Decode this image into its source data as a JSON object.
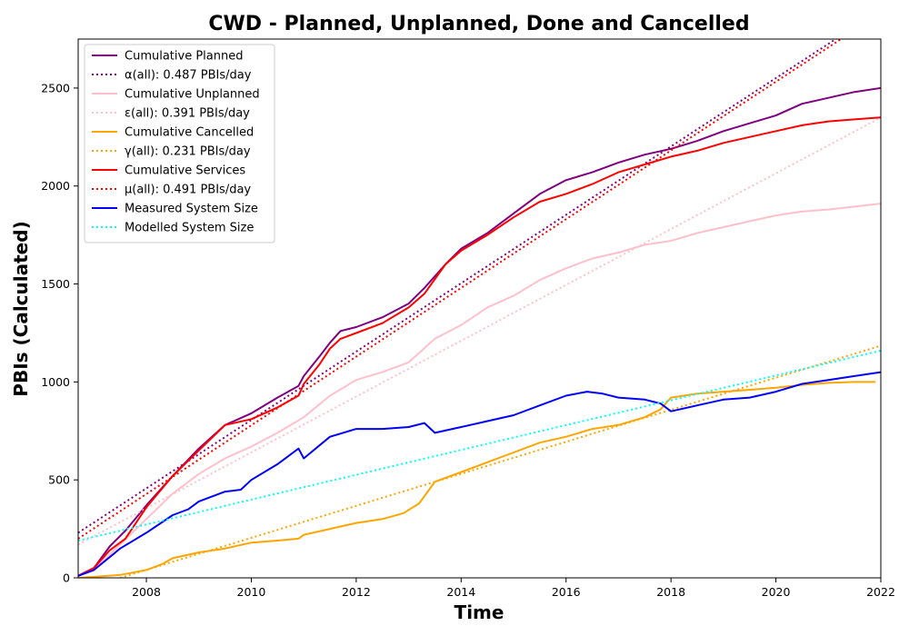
{
  "chart_data": {
    "type": "line",
    "title": "CWD - Planned, Unplanned, Done  and Cancelled",
    "xlabel": "Time",
    "ylabel": "PBIs (Calculated)",
    "xlim": [
      2006.7,
      2022.0
    ],
    "ylim": [
      0,
      2750
    ],
    "xticks": [
      2008,
      2010,
      2012,
      2014,
      2016,
      2018,
      2020,
      2022
    ],
    "xtick_labels": [
      "2008",
      "2010",
      "2012",
      "2014",
      "2016",
      "2018",
      "2020",
      "2022"
    ],
    "yticks": [
      0,
      500,
      1000,
      1500,
      2000,
      2500
    ],
    "ytick_labels": [
      "0",
      "500",
      "1000",
      "1500",
      "2000",
      "2500"
    ],
    "grid": false,
    "legend_position": "top-left",
    "series": [
      {
        "name": "Cumulative Planned",
        "color": "#800080",
        "dash": "solid",
        "x": [
          2006.7,
          2007.0,
          2007.3,
          2007.6,
          2008.0,
          2008.5,
          2009.0,
          2009.5,
          2010.0,
          2010.5,
          2010.9,
          2011.0,
          2011.3,
          2011.5,
          2011.7,
          2012.0,
          2012.5,
          2013.0,
          2013.3,
          2013.7,
          2014.0,
          2014.5,
          2015.0,
          2015.5,
          2016.0,
          2016.5,
          2017.0,
          2017.5,
          2018.0,
          2018.5,
          2019.0,
          2019.5,
          2020.0,
          2020.5,
          2021.0,
          2021.5,
          2022.0
        ],
        "y": [
          10,
          50,
          160,
          240,
          370,
          520,
          660,
          780,
          840,
          920,
          980,
          1030,
          1130,
          1200,
          1260,
          1280,
          1330,
          1400,
          1480,
          1600,
          1680,
          1760,
          1860,
          1960,
          2030,
          2070,
          2120,
          2160,
          2190,
          2230,
          2280,
          2320,
          2360,
          2420,
          2450,
          2480,
          2500
        ]
      },
      {
        "name": "α(all): 0.487 PBIs/day",
        "color": "#800080",
        "dash": "dotted",
        "x": [
          2006.7,
          2021.2
        ],
        "y": [
          230,
          2760
        ]
      },
      {
        "name": "Cumulative Unplanned",
        "color": "#FFC0CB",
        "dash": "solid",
        "x": [
          2006.7,
          2007.0,
          2007.5,
          2008.0,
          2008.5,
          2009.0,
          2009.5,
          2010.0,
          2010.5,
          2011.0,
          2011.5,
          2012.0,
          2012.5,
          2013.0,
          2013.5,
          2014.0,
          2014.5,
          2015.0,
          2015.5,
          2016.0,
          2016.5,
          2017.0,
          2017.5,
          2018.0,
          2018.5,
          2019.0,
          2019.5,
          2020.0,
          2020.5,
          2021.0,
          2021.5,
          2022.0
        ],
        "y": [
          10,
          40,
          170,
          300,
          430,
          530,
          610,
          670,
          740,
          820,
          930,
          1010,
          1050,
          1100,
          1220,
          1290,
          1380,
          1440,
          1520,
          1580,
          1630,
          1660,
          1700,
          1720,
          1760,
          1790,
          1820,
          1850,
          1870,
          1880,
          1895,
          1910
        ]
      },
      {
        "name": "ε(all): 0.391 PBIs/day",
        "color": "#FFC0CB",
        "dash": "dotted",
        "x": [
          2006.7,
          2022.0
        ],
        "y": [
          170,
          2350
        ]
      },
      {
        "name": "Cumulative Cancelled",
        "color": "#FFA500",
        "dash": "solid",
        "x": [
          2006.7,
          2007.0,
          2007.5,
          2008.0,
          2008.3,
          2008.5,
          2009.0,
          2009.5,
          2010.0,
          2010.5,
          2010.9,
          2011.0,
          2011.5,
          2012.0,
          2012.5,
          2012.9,
          2013.2,
          2013.5,
          2014.0,
          2014.5,
          2015.0,
          2015.5,
          2016.0,
          2016.5,
          2017.0,
          2017.5,
          2017.8,
          2018.0,
          2018.5,
          2019.0,
          2019.5,
          2020.0,
          2020.5,
          2021.0,
          2021.5,
          2021.9
        ],
        "y": [
          0,
          5,
          15,
          40,
          70,
          100,
          130,
          150,
          180,
          190,
          200,
          220,
          250,
          280,
          300,
          330,
          380,
          490,
          540,
          590,
          640,
          690,
          720,
          760,
          780,
          820,
          860,
          920,
          940,
          950,
          960,
          970,
          985,
          995,
          1000,
          1000
        ]
      },
      {
        "name": "γ(all): 0.231 PBIs/day",
        "color": "#FFA500",
        "dash": "dotted",
        "x": [
          2007.5,
          2022.0
        ],
        "y": [
          0,
          1185
        ]
      },
      {
        "name": "Cumulative Services",
        "color": "#FF0000",
        "dash": "solid",
        "x": [
          2006.7,
          2007.0,
          2007.3,
          2007.6,
          2008.0,
          2008.5,
          2009.0,
          2009.5,
          2010.0,
          2010.5,
          2010.9,
          2011.0,
          2011.3,
          2011.5,
          2011.7,
          2012.0,
          2012.5,
          2013.0,
          2013.3,
          2013.7,
          2014.0,
          2014.5,
          2015.0,
          2015.5,
          2016.0,
          2016.5,
          2017.0,
          2017.5,
          2018.0,
          2018.5,
          2019.0,
          2019.5,
          2020.0,
          2020.5,
          2021.0,
          2021.5,
          2022.0
        ],
        "y": [
          10,
          50,
          140,
          200,
          360,
          520,
          650,
          780,
          810,
          870,
          930,
          990,
          1090,
          1170,
          1220,
          1250,
          1300,
          1380,
          1450,
          1600,
          1670,
          1750,
          1840,
          1920,
          1960,
          2010,
          2070,
          2110,
          2150,
          2180,
          2220,
          2250,
          2280,
          2310,
          2330,
          2340,
          2350
        ]
      },
      {
        "name": "μ(all): 0.491 PBIs/day",
        "color": "#FF0000",
        "dash": "dotted",
        "x": [
          2006.7,
          2021.3
        ],
        "y": [
          200,
          2760
        ]
      },
      {
        "name": "Measured System Size",
        "color": "#0000FF",
        "dash": "solid",
        "x": [
          2006.7,
          2007.0,
          2007.5,
          2008.0,
          2008.5,
          2008.8,
          2009.0,
          2009.5,
          2009.8,
          2010.0,
          2010.5,
          2010.9,
          2011.0,
          2011.5,
          2012.0,
          2012.5,
          2013.0,
          2013.3,
          2013.5,
          2014.0,
          2014.5,
          2015.0,
          2015.5,
          2016.0,
          2016.4,
          2016.7,
          2017.0,
          2017.5,
          2017.8,
          2018.0,
          2018.5,
          2019.0,
          2019.5,
          2020.0,
          2020.5,
          2021.0,
          2021.5,
          2022.0
        ],
        "y": [
          10,
          40,
          150,
          230,
          320,
          350,
          390,
          440,
          450,
          500,
          580,
          660,
          610,
          720,
          760,
          760,
          770,
          790,
          740,
          770,
          800,
          830,
          880,
          930,
          950,
          940,
          920,
          910,
          890,
          850,
          880,
          910,
          920,
          950,
          990,
          1010,
          1030,
          1050
        ]
      },
      {
        "name": "Modelled System Size",
        "color": "#00FFFF",
        "dash": "dotted",
        "x": [
          2006.7,
          2022.0
        ],
        "y": [
          190,
          1160
        ]
      }
    ]
  }
}
